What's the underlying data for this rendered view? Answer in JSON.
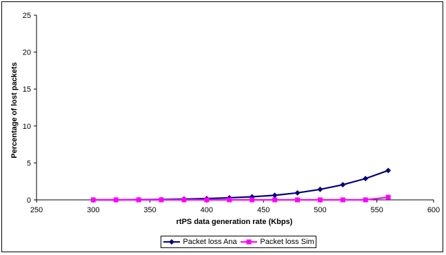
{
  "chart_data": {
    "type": "line",
    "title": "",
    "xlabel": "rtPS data generation rate (Kbps)",
    "ylabel": "Percentage of lost packets",
    "xlim": [
      250,
      600
    ],
    "ylim": [
      0,
      25
    ],
    "xticks": [
      250,
      300,
      350,
      400,
      450,
      500,
      550,
      600
    ],
    "yticks": [
      0,
      5,
      10,
      15,
      20,
      25
    ],
    "grid": false,
    "legend_position": "bottom",
    "x": [
      300,
      320,
      340,
      360,
      380,
      400,
      420,
      440,
      460,
      480,
      500,
      520,
      540,
      560
    ],
    "series": [
      {
        "name": "Packet loss Ana",
        "color": "#000080",
        "marker": "diamond",
        "values": [
          0.0,
          0.0,
          0.02,
          0.05,
          0.1,
          0.18,
          0.28,
          0.42,
          0.62,
          0.95,
          1.42,
          2.05,
          2.88,
          3.98
        ]
      },
      {
        "name": "Packet loss Sim",
        "color": "#ff00ff",
        "marker": "square",
        "values": [
          0,
          0,
          0,
          0,
          0,
          0,
          0,
          0,
          0,
          0,
          0,
          0,
          0,
          0.35
        ]
      }
    ]
  }
}
